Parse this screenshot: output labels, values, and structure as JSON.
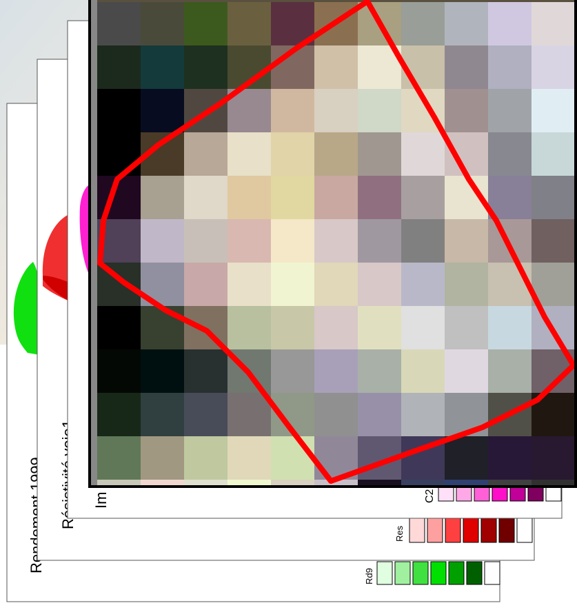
{
  "layers": [
    {
      "title": "Rendement 1999",
      "legend_label": "Rd9"
    },
    {
      "title": "Résistivité voie1",
      "legend_label": "Res"
    },
    {
      "title": "Im",
      "legend_label": "C2"
    }
  ]
}
